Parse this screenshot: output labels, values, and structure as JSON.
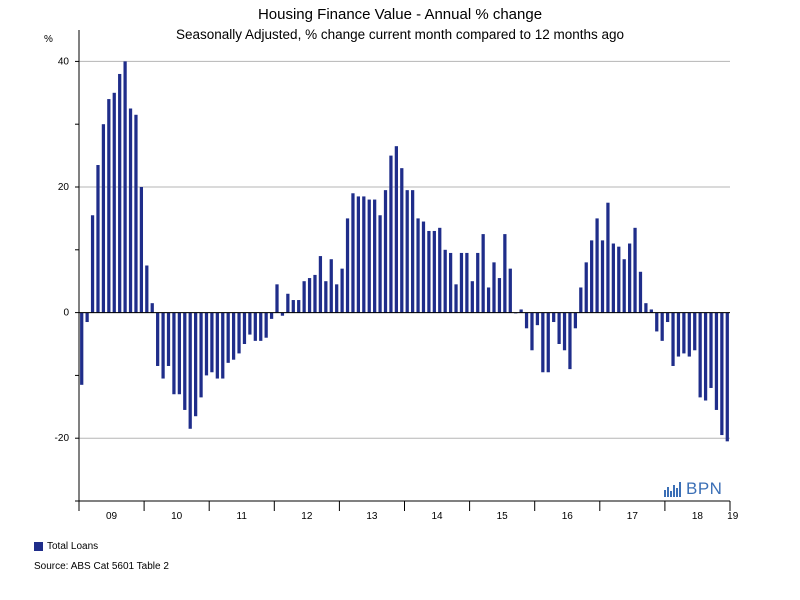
{
  "chart_data": {
    "type": "bar",
    "title": "Housing Finance Value - Annual % change",
    "subtitle": "Seasonally Adjusted, % change current month compared to 12 months ago",
    "ylabel": "%",
    "xlabel": "",
    "ylim": [
      -30,
      45
    ],
    "yticks": [
      40,
      20,
      0,
      -20
    ],
    "grid": true,
    "year_labels": [
      "09",
      "10",
      "11",
      "12",
      "13",
      "14",
      "15",
      "16",
      "17",
      "18",
      "19"
    ],
    "series": [
      {
        "name": "Total Loans",
        "color": "#1f2d8a",
        "values": [
          -11.5,
          -1.5,
          15.5,
          23.5,
          30,
          34,
          35,
          38,
          40,
          32.5,
          31.5,
          20,
          7.5,
          1.5,
          -8.5,
          -10.5,
          -8.5,
          -13,
          -13,
          -15.5,
          -18.5,
          -16.5,
          -13.5,
          -10,
          -9.5,
          -10.5,
          -10.5,
          -8,
          -7.5,
          -6.5,
          -5,
          -3.5,
          -4.5,
          -4.5,
          -4,
          -1,
          4.5,
          -0.5,
          3,
          2,
          2,
          5,
          5.5,
          6,
          9,
          5,
          8.5,
          4.5,
          7,
          15,
          19,
          18.5,
          18.5,
          18,
          18,
          15.5,
          19.5,
          25,
          26.5,
          23,
          19.5,
          19.5,
          15,
          14.5,
          13,
          13,
          13.5,
          10,
          9.5,
          4.5,
          9.5,
          9.5,
          5,
          9.5,
          12.5,
          4,
          8,
          5.5,
          12.5,
          7,
          0,
          0.5,
          -2.5,
          -6,
          -2,
          -9.5,
          -9.5,
          -1.5,
          -5,
          -6,
          -9,
          -2.5,
          4,
          8,
          11.5,
          15,
          11.5,
          17.5,
          11,
          10.5,
          8.5,
          11,
          13.5,
          6.5,
          1.5,
          0.5,
          -3,
          -4.5,
          -1.5,
          -8.5,
          -7,
          -6.5,
          -7,
          -6,
          -13.5,
          -14,
          -12,
          -15.5,
          -19.5,
          -20.5
        ]
      }
    ]
  },
  "legend": {
    "label": "Total Loans",
    "color": "#1f2d8a"
  },
  "source": "Source: ABS Cat 5601 Table 2",
  "logo": {
    "text": "BPN",
    "color": "#3b6fb6"
  }
}
